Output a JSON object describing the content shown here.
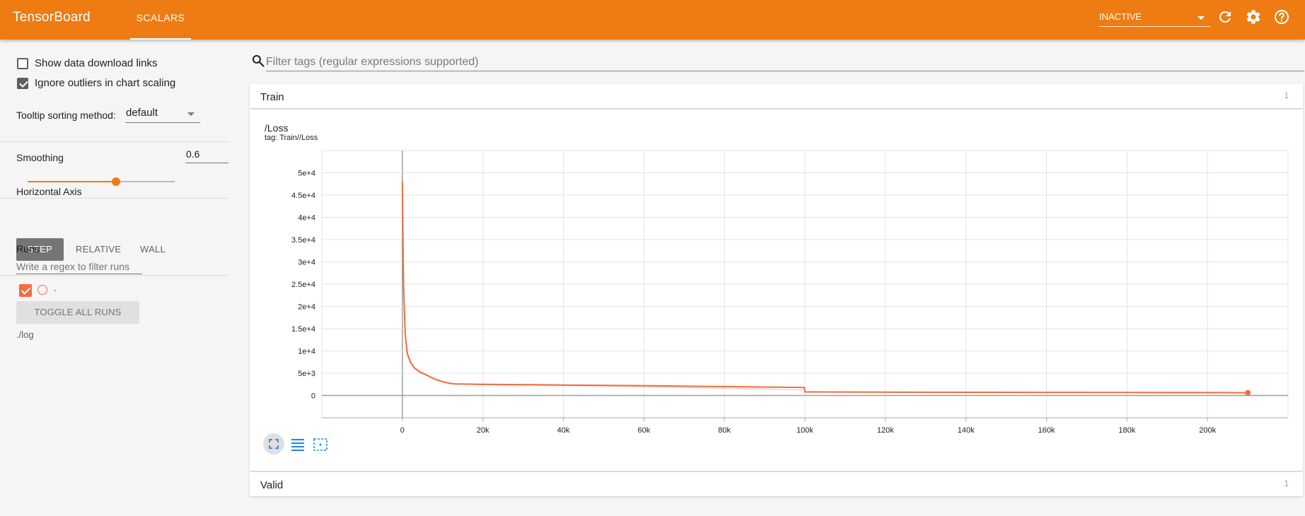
{
  "header": {
    "brand": "TensorBoard",
    "tab_label": "SCALARS",
    "status_select": "INACTIVE",
    "icons": [
      "refresh-icon",
      "settings-icon",
      "help-icon"
    ]
  },
  "sidebar": {
    "show_download_links": {
      "label": "Show data download links",
      "checked": false
    },
    "ignore_outliers": {
      "label": "Ignore outliers in chart scaling",
      "checked": true
    },
    "tooltip_sorting": {
      "label": "Tooltip sorting method:",
      "value": "default"
    },
    "smoothing": {
      "label": "Smoothing",
      "value": "0.6",
      "level": 0.6
    },
    "horizontal_axis": {
      "label": "Horizontal Axis",
      "options": [
        "STEP",
        "RELATIVE",
        "WALL"
      ],
      "selected": "STEP"
    },
    "runs": {
      "label": "Runs",
      "filter_placeholder": "Write a regex to filter runs",
      "run_name": ".",
      "run_color": "#f36b3f",
      "toggle_label": "TOGGLE ALL RUNS",
      "logdir": "./log"
    }
  },
  "main": {
    "filter_placeholder": "Filter tags (regular expressions supported)",
    "groups": [
      {
        "name": "Train",
        "count": "1"
      },
      {
        "name": "Valid",
        "count": "1"
      }
    ],
    "chart": {
      "title": "/Loss",
      "tag": "tag: Train//Loss"
    }
  },
  "chart_data": {
    "type": "line",
    "title": "/Loss",
    "subtitle": "tag: Train//Loss",
    "xlim": [
      -20000,
      220000
    ],
    "ylim": [
      -5000,
      55000
    ],
    "x_ticks": [
      0,
      20000,
      40000,
      60000,
      80000,
      100000,
      120000,
      140000,
      160000,
      180000,
      200000
    ],
    "x_tick_labels": [
      "0",
      "20k",
      "40k",
      "60k",
      "80k",
      "100k",
      "120k",
      "140k",
      "160k",
      "180k",
      "200k"
    ],
    "y_ticks": [
      0,
      5000,
      10000,
      15000,
      20000,
      25000,
      30000,
      35000,
      40000,
      45000,
      50000
    ],
    "y_tick_labels": [
      "0",
      "5e+3",
      "1e+4",
      "1.5e+4",
      "2e+4",
      "2.5e+4",
      "3e+4",
      "3.5e+4",
      "4e+4",
      "4.5e+4",
      "5e+4"
    ],
    "grid": true,
    "series": [
      {
        "color": "#f36b3f",
        "x": [
          0,
          300,
          700,
          1200,
          2000,
          3000,
          4500,
          6000,
          8000,
          10000,
          12000,
          13000,
          20000,
          40000,
          60000,
          80000,
          99900,
          100000,
          120000,
          160000,
          200000,
          210000
        ],
        "smoothed": [
          48000,
          25000,
          14000,
          9500,
          7500,
          6200,
          5200,
          4600,
          3700,
          3100,
          2700,
          2600,
          2500,
          2350,
          2200,
          2000,
          1800,
          800,
          750,
          700,
          650,
          600
        ],
        "raw": [
          49000,
          24000,
          13500,
          9200,
          7300,
          6000,
          5100,
          4500,
          3600,
          3000,
          2650,
          2550,
          2400,
          2200,
          1950,
          1600,
          1200,
          750,
          720,
          680,
          640,
          600
        ]
      }
    ]
  }
}
